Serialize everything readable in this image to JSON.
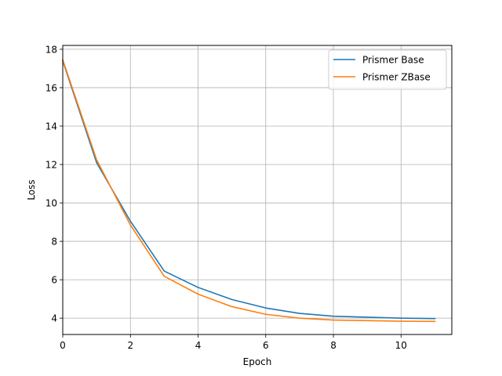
{
  "chart_data": {
    "type": "line",
    "xlabel": "Epoch",
    "ylabel": "Loss",
    "xlim": [
      0,
      11.5
    ],
    "ylim": [
      3.15,
      18.2
    ],
    "xticks": [
      0,
      2,
      4,
      6,
      8,
      10
    ],
    "yticks": [
      4,
      6,
      8,
      10,
      12,
      14,
      16,
      18
    ],
    "grid": true,
    "legend_position": "top-right",
    "x": [
      0,
      1,
      2,
      3,
      4,
      5,
      6,
      7,
      8,
      9,
      10,
      11
    ],
    "series": [
      {
        "name": "Prismer Base",
        "color": "#1f77b4",
        "values": [
          17.4,
          12.1,
          9.05,
          6.45,
          5.6,
          4.97,
          4.53,
          4.25,
          4.1,
          4.05,
          4.0,
          3.98
        ]
      },
      {
        "name": "Prismer ZBase",
        "color": "#ff7f0e",
        "values": [
          17.45,
          12.25,
          8.85,
          6.18,
          5.25,
          4.6,
          4.2,
          4.0,
          3.9,
          3.87,
          3.84,
          3.83
        ]
      }
    ]
  }
}
